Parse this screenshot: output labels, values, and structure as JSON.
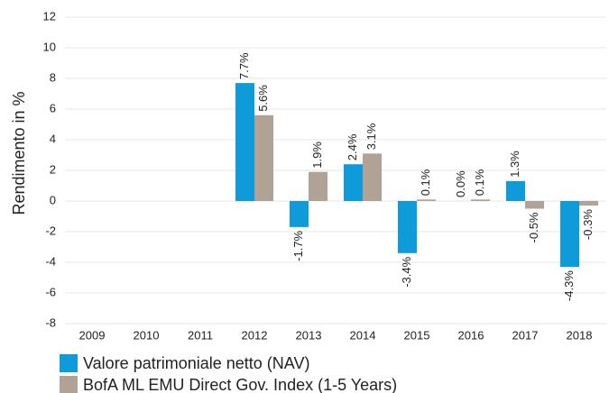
{
  "chart_data": {
    "type": "bar",
    "ylabel": "Rendimento in %",
    "categories": [
      "2009",
      "2010",
      "2011",
      "2012",
      "2013",
      "2014",
      "2015",
      "2016",
      "2017",
      "2018"
    ],
    "series": [
      {
        "name": "Valore patrimoniale netto (NAV)",
        "color": "#0f9ad9",
        "values": [
          null,
          null,
          null,
          7.7,
          -1.7,
          2.4,
          -3.4,
          0.0,
          1.3,
          -4.3
        ],
        "value_labels": [
          null,
          null,
          null,
          "7.7%",
          "-1.7%",
          "2.4%",
          "-3.4%",
          "0.0%",
          "1.3%",
          "-4.3%"
        ]
      },
      {
        "name": "BofA ML EMU Direct Gov. Index (1-5 Years)",
        "color": "#b0a294",
        "values": [
          null,
          null,
          null,
          5.6,
          1.9,
          3.1,
          0.1,
          0.1,
          -0.5,
          -0.3
        ],
        "value_labels": [
          null,
          null,
          null,
          "5.6%",
          "1.9%",
          "3.1%",
          "0.1%",
          "0.1%",
          "-0.5%",
          "-0.3%"
        ]
      }
    ],
    "ylim": [
      -8,
      12
    ],
    "yticks": [
      -8,
      -6,
      -4,
      -2,
      0,
      2,
      4,
      6,
      8,
      10,
      12
    ],
    "grid": true
  }
}
